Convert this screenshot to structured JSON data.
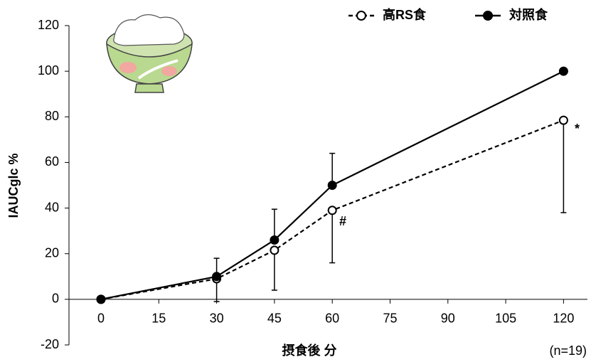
{
  "chart_data": {
    "type": "line",
    "x": [
      0,
      30,
      45,
      60,
      120
    ],
    "series": [
      {
        "name": "高RS食",
        "color": "#000000",
        "dash": true,
        "marker": "open",
        "values": [
          0,
          9,
          21.5,
          39,
          78.5
        ],
        "errors": [
          null,
          10,
          17.5,
          23,
          40.5
        ]
      },
      {
        "name": "対照食",
        "color": "#000000",
        "dash": false,
        "marker": "filled",
        "values": [
          0,
          10,
          26,
          50,
          100
        ],
        "errors": [
          null,
          8,
          13.5,
          14,
          null
        ]
      }
    ],
    "xlim": [
      -8.3,
      126.2
    ],
    "xticks": [
      0,
      15,
      30,
      45,
      60,
      75,
      90,
      105,
      120
    ],
    "ylim": [
      -20,
      120
    ],
    "yticks": [
      -20,
      0,
      20,
      40,
      60,
      80,
      100,
      120
    ],
    "x_label": "摂食後 分",
    "y_label": "IAUCglc %",
    "annotations": [
      "#",
      "*"
    ],
    "note": "(n=19)"
  }
}
